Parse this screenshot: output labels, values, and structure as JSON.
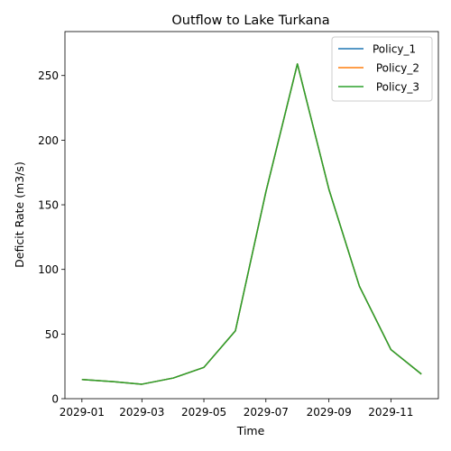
{
  "chart_data": {
    "type": "line",
    "title": "Outflow to Lake Turkana",
    "xlabel": "Time",
    "ylabel": "Deficit Rate (m3/s)",
    "x": [
      "2029-01-01",
      "2029-02-01",
      "2029-03-01",
      "2029-04-01",
      "2029-05-01",
      "2029-06-01",
      "2029-07-01",
      "2029-08-01",
      "2029-09-01",
      "2029-10-01",
      "2029-11-01",
      "2029-12-01"
    ],
    "x_ticks": [
      "2029-01",
      "2029-03",
      "2029-05",
      "2029-07",
      "2029-09",
      "2029-11"
    ],
    "y_ticks": [
      0,
      50,
      100,
      150,
      200,
      250
    ],
    "ylim": [
      0,
      284
    ],
    "series": [
      {
        "name": "Policy_1",
        "color": "#1f77b4",
        "values": [
          14.8,
          13.2,
          11.2,
          16.0,
          24.2,
          52.5,
          160.0,
          259.0,
          162.0,
          87.0,
          38.0,
          19.0
        ]
      },
      {
        "name": " Policy_2",
        "color": "#ff7f0e",
        "values": [
          14.8,
          13.2,
          11.2,
          16.0,
          24.2,
          52.5,
          160.0,
          259.0,
          162.0,
          87.0,
          38.0,
          19.0
        ]
      },
      {
        "name": " Policy_3",
        "color": "#2ca02c",
        "values": [
          14.8,
          13.2,
          11.2,
          16.0,
          24.2,
          52.5,
          160.0,
          259.0,
          162.0,
          87.0,
          38.0,
          19.0
        ]
      }
    ],
    "legend": "top-right",
    "grid": false
  }
}
